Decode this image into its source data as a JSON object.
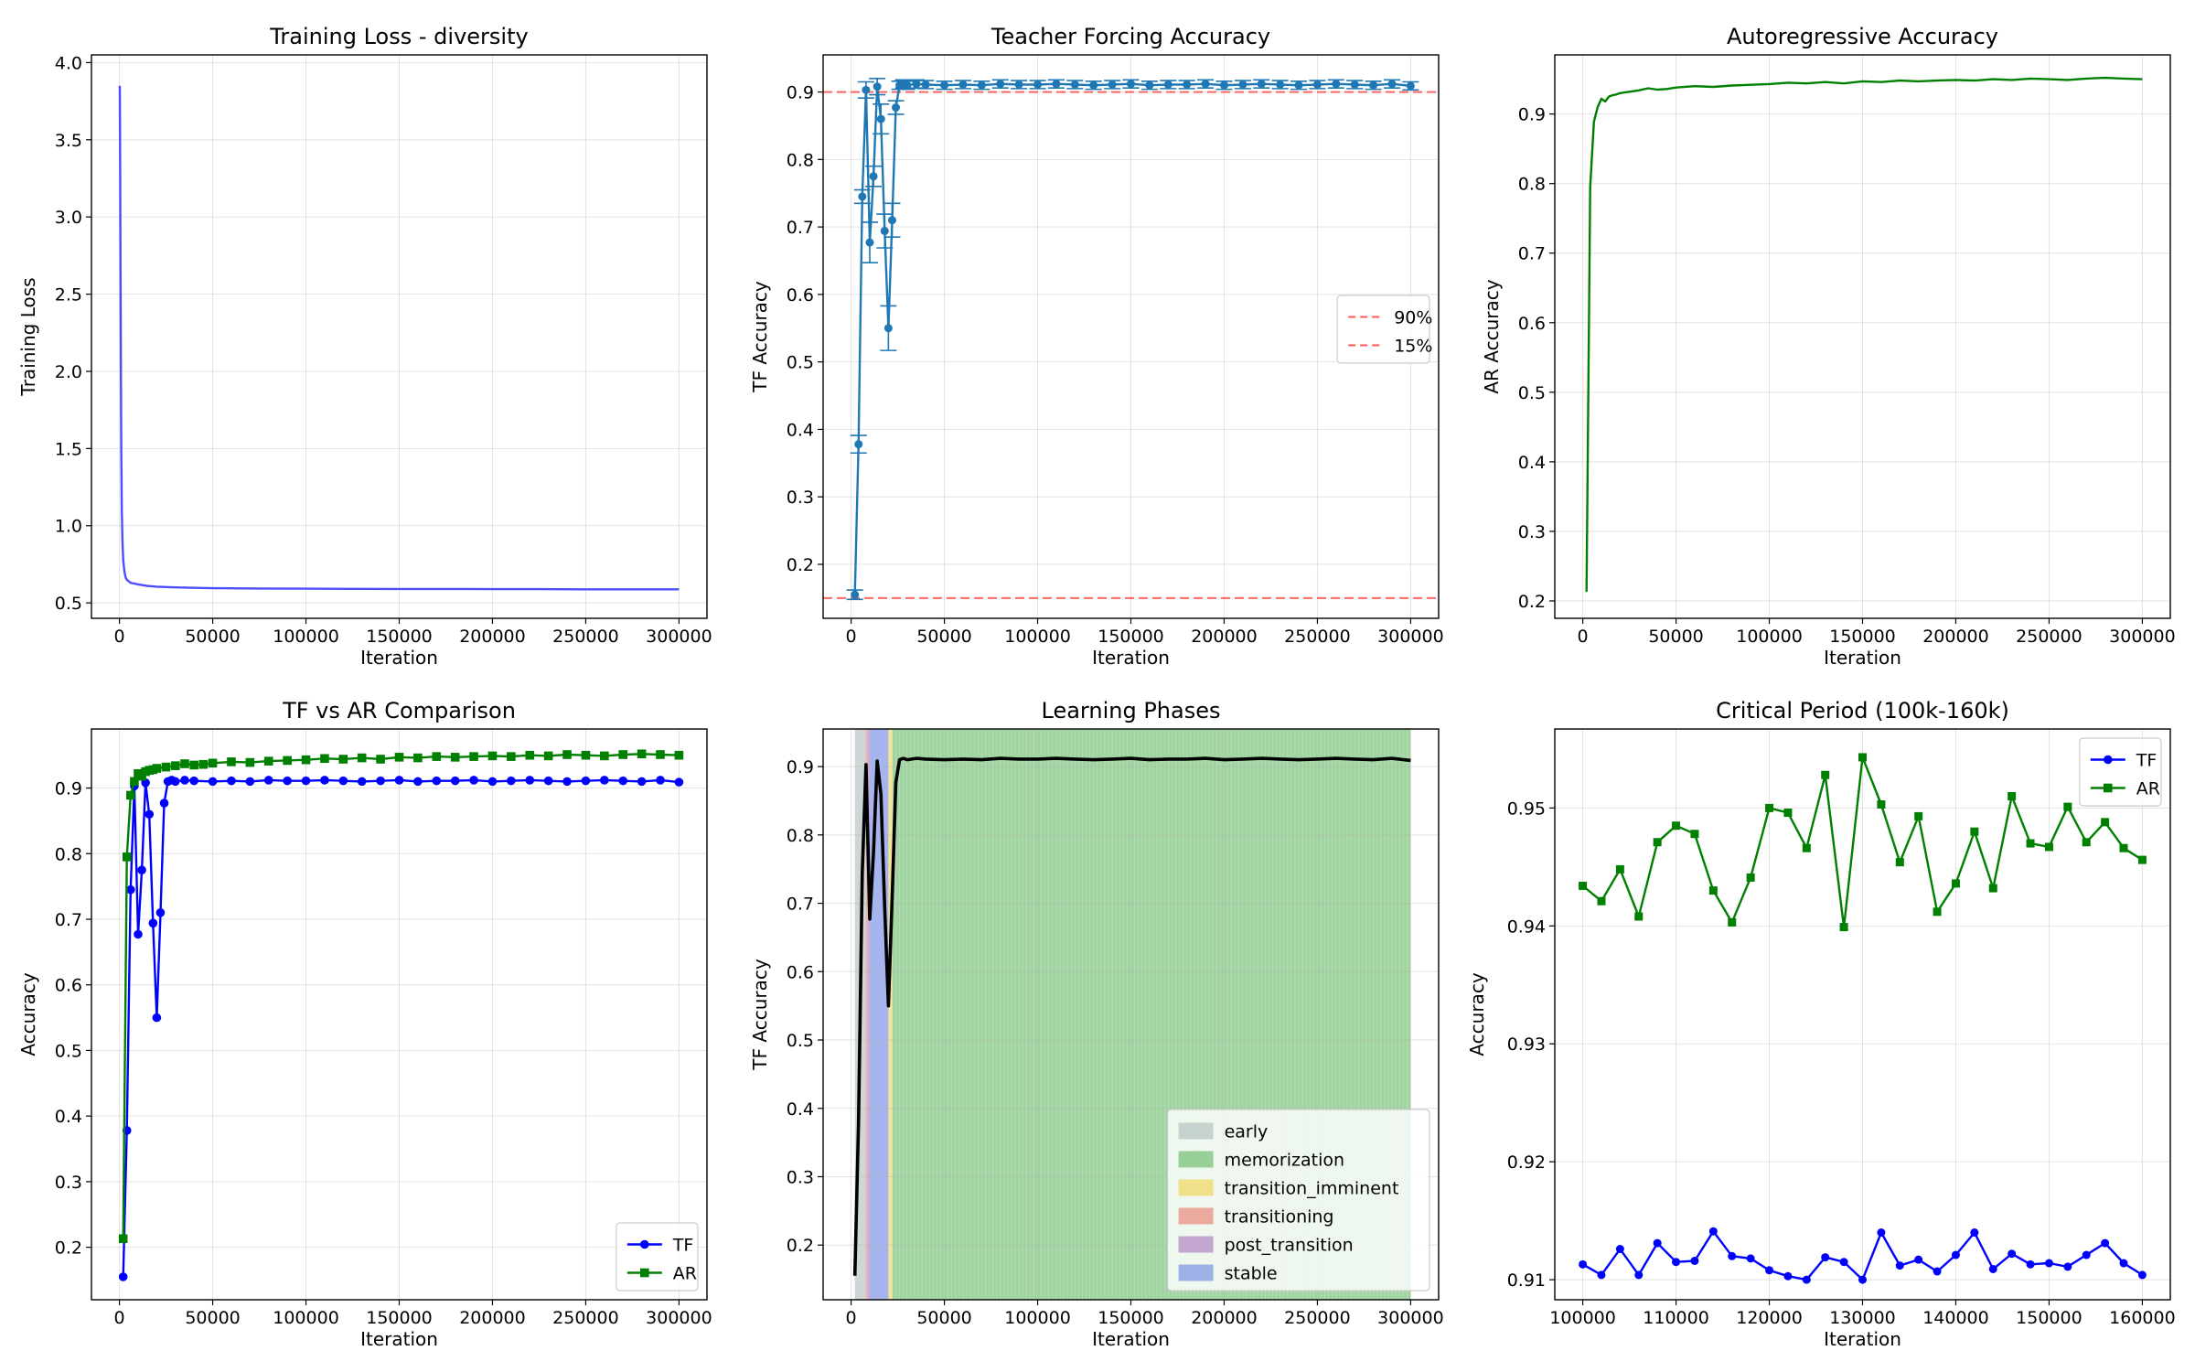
{
  "chart_data": [
    {
      "id": "loss",
      "type": "line",
      "title": "Training Loss - diversity",
      "xlabel": "Iteration",
      "ylabel": "Training Loss",
      "xlim": [
        -15000,
        315000
      ],
      "ylim": [
        0.4,
        4.05
      ],
      "xticks": [
        0,
        50000,
        100000,
        150000,
        200000,
        250000,
        300000
      ],
      "yticks": [
        0.5,
        1.0,
        1.5,
        2.0,
        2.5,
        3.0,
        3.5,
        4.0
      ],
      "ytick_labels": [
        "0.5",
        "1.0",
        "1.5",
        "2.0",
        "2.5",
        "3.0",
        "3.5",
        "4.0"
      ],
      "grid": true,
      "series": [
        {
          "color": "#4d4dff",
          "x": [
            200,
            400,
            600,
            800,
            1000,
            1300,
            1600,
            2000,
            2500,
            3000,
            3500,
            4000,
            5000,
            6000,
            8000,
            10000,
            15000,
            20000,
            30000,
            50000,
            75000,
            100000,
            125000,
            150000,
            175000,
            200000,
            225000,
            250000,
            275000,
            300000
          ],
          "y": [
            3.85,
            3.3,
            2.6,
            2.0,
            1.5,
            1.1,
            0.9,
            0.78,
            0.72,
            0.68,
            0.66,
            0.65,
            0.64,
            0.63,
            0.625,
            0.62,
            0.61,
            0.605,
            0.6,
            0.595,
            0.593,
            0.592,
            0.591,
            0.59,
            0.59,
            0.589,
            0.589,
            0.588,
            0.588,
            0.588
          ]
        }
      ]
    },
    {
      "id": "tf",
      "type": "line",
      "title": "Teacher Forcing Accuracy",
      "xlabel": "Iteration",
      "ylabel": "TF Accuracy",
      "xlim": [
        -15000,
        315000
      ],
      "ylim": [
        0.12,
        0.955
      ],
      "xticks": [
        0,
        50000,
        100000,
        150000,
        200000,
        250000,
        300000
      ],
      "yticks": [
        0.2,
        0.3,
        0.4,
        0.5,
        0.6,
        0.7,
        0.8,
        0.9
      ],
      "ytick_labels": [
        "0.2",
        "0.3",
        "0.4",
        "0.5",
        "0.6",
        "0.7",
        "0.8",
        "0.9"
      ],
      "grid": true,
      "legend_position": "center-right",
      "hlines": [
        {
          "y": 0.9,
          "label": "90%",
          "color": "#ff5555"
        },
        {
          "y": 0.15,
          "label": "15%",
          "color": "#ff5555"
        }
      ],
      "series": [
        {
          "color": "#1f77b4",
          "x": [
            2000,
            4000,
            6000,
            8000,
            10000,
            12000,
            14000,
            16000,
            18000,
            20000,
            22000,
            24000,
            26000,
            28000,
            30000,
            35000,
            40000,
            50000,
            60000,
            70000,
            80000,
            90000,
            100000,
            110000,
            120000,
            130000,
            140000,
            150000,
            160000,
            170000,
            180000,
            190000,
            200000,
            210000,
            220000,
            230000,
            240000,
            250000,
            260000,
            270000,
            280000,
            290000,
            300000
          ],
          "y": [
            0.155,
            0.378,
            0.745,
            0.903,
            0.677,
            0.775,
            0.908,
            0.86,
            0.694,
            0.55,
            0.71,
            0.877,
            0.91,
            0.912,
            0.91,
            0.912,
            0.911,
            0.91,
            0.911,
            0.91,
            0.912,
            0.911,
            0.911,
            0.912,
            0.911,
            0.91,
            0.911,
            0.912,
            0.91,
            0.911,
            0.911,
            0.912,
            0.91,
            0.911,
            0.912,
            0.911,
            0.91,
            0.911,
            0.912,
            0.911,
            0.91,
            0.912,
            0.909
          ],
          "err": [
            0.007,
            0.013,
            0.01,
            0.012,
            0.03,
            0.015,
            0.012,
            0.022,
            0.025,
            0.033,
            0.025,
            0.01,
            0.006,
            0.006,
            0.006,
            0.006,
            0.006,
            0.006,
            0.006,
            0.006,
            0.006,
            0.006,
            0.006,
            0.006,
            0.006,
            0.006,
            0.006,
            0.006,
            0.006,
            0.006,
            0.006,
            0.006,
            0.006,
            0.006,
            0.006,
            0.006,
            0.006,
            0.006,
            0.006,
            0.006,
            0.006,
            0.006,
            0.006
          ]
        }
      ]
    },
    {
      "id": "ar",
      "type": "line",
      "title": "Autoregressive Accuracy",
      "xlabel": "Iteration",
      "ylabel": "AR Accuracy",
      "xlim": [
        -15000,
        315000
      ],
      "ylim": [
        0.175,
        0.985
      ],
      "xticks": [
        0,
        50000,
        100000,
        150000,
        200000,
        250000,
        300000
      ],
      "yticks": [
        0.2,
        0.3,
        0.4,
        0.5,
        0.6,
        0.7,
        0.8,
        0.9
      ],
      "ytick_labels": [
        "0.2",
        "0.3",
        "0.4",
        "0.5",
        "0.6",
        "0.7",
        "0.8",
        "0.9"
      ],
      "grid": true,
      "series": [
        {
          "color": "#008000",
          "x": [
            2000,
            4000,
            6000,
            8000,
            10000,
            12000,
            14000,
            16000,
            18000,
            20000,
            25000,
            30000,
            35000,
            40000,
            45000,
            50000,
            60000,
            70000,
            80000,
            90000,
            100000,
            110000,
            120000,
            130000,
            140000,
            150000,
            160000,
            170000,
            180000,
            190000,
            200000,
            210000,
            220000,
            230000,
            240000,
            250000,
            260000,
            270000,
            280000,
            290000,
            300000
          ],
          "y": [
            0.213,
            0.795,
            0.889,
            0.91,
            0.922,
            0.918,
            0.925,
            0.927,
            0.928,
            0.93,
            0.932,
            0.934,
            0.937,
            0.935,
            0.936,
            0.938,
            0.94,
            0.939,
            0.941,
            0.942,
            0.943,
            0.945,
            0.944,
            0.946,
            0.944,
            0.947,
            0.946,
            0.948,
            0.947,
            0.948,
            0.949,
            0.948,
            0.95,
            0.949,
            0.951,
            0.95,
            0.949,
            0.951,
            0.952,
            0.951,
            0.95
          ]
        }
      ]
    },
    {
      "id": "cmp",
      "type": "line",
      "title": "TF vs AR Comparison",
      "xlabel": "Iteration",
      "ylabel": "Accuracy",
      "xlim": [
        -15000,
        315000
      ],
      "ylim": [
        0.12,
        0.99
      ],
      "xticks": [
        0,
        50000,
        100000,
        150000,
        200000,
        250000,
        300000
      ],
      "yticks": [
        0.2,
        0.3,
        0.4,
        0.5,
        0.6,
        0.7,
        0.8,
        0.9
      ],
      "ytick_labels": [
        "0.2",
        "0.3",
        "0.4",
        "0.5",
        "0.6",
        "0.7",
        "0.8",
        "0.9"
      ],
      "grid": true,
      "legend_position": "lower-right",
      "series": [
        {
          "name": "TF",
          "color": "#0000ff",
          "marker": "circle",
          "x": [
            2000,
            4000,
            6000,
            8000,
            10000,
            12000,
            14000,
            16000,
            18000,
            20000,
            22000,
            24000,
            26000,
            28000,
            30000,
            35000,
            40000,
            50000,
            60000,
            70000,
            80000,
            90000,
            100000,
            110000,
            120000,
            130000,
            140000,
            150000,
            160000,
            170000,
            180000,
            190000,
            200000,
            210000,
            220000,
            230000,
            240000,
            250000,
            260000,
            270000,
            280000,
            290000,
            300000
          ],
          "y": [
            0.155,
            0.378,
            0.745,
            0.903,
            0.677,
            0.775,
            0.908,
            0.86,
            0.694,
            0.55,
            0.71,
            0.877,
            0.91,
            0.912,
            0.91,
            0.912,
            0.911,
            0.91,
            0.911,
            0.91,
            0.912,
            0.911,
            0.911,
            0.912,
            0.911,
            0.91,
            0.911,
            0.912,
            0.91,
            0.911,
            0.911,
            0.912,
            0.91,
            0.911,
            0.912,
            0.911,
            0.91,
            0.911,
            0.912,
            0.911,
            0.91,
            0.912,
            0.909
          ]
        },
        {
          "name": "AR",
          "color": "#008000",
          "marker": "square",
          "x": [
            2000,
            4000,
            6000,
            8000,
            10000,
            12000,
            14000,
            16000,
            18000,
            20000,
            25000,
            30000,
            35000,
            40000,
            45000,
            50000,
            60000,
            70000,
            80000,
            90000,
            100000,
            110000,
            120000,
            130000,
            140000,
            150000,
            160000,
            170000,
            180000,
            190000,
            200000,
            210000,
            220000,
            230000,
            240000,
            250000,
            260000,
            270000,
            280000,
            290000,
            300000
          ],
          "y": [
            0.213,
            0.795,
            0.889,
            0.91,
            0.922,
            0.918,
            0.925,
            0.927,
            0.928,
            0.93,
            0.932,
            0.934,
            0.937,
            0.935,
            0.936,
            0.938,
            0.94,
            0.939,
            0.941,
            0.942,
            0.943,
            0.945,
            0.944,
            0.946,
            0.944,
            0.947,
            0.946,
            0.948,
            0.947,
            0.948,
            0.949,
            0.948,
            0.95,
            0.949,
            0.951,
            0.95,
            0.949,
            0.951,
            0.952,
            0.951,
            0.95
          ]
        }
      ]
    },
    {
      "id": "phases",
      "type": "line",
      "title": "Learning Phases",
      "xlabel": "Iteration",
      "ylabel": "TF Accuracy",
      "xlim": [
        -15000,
        315000
      ],
      "ylim": [
        0.12,
        0.955
      ],
      "xticks": [
        0,
        50000,
        100000,
        150000,
        200000,
        250000,
        300000
      ],
      "yticks": [
        0.2,
        0.3,
        0.4,
        0.5,
        0.6,
        0.7,
        0.8,
        0.9
      ],
      "ytick_labels": [
        "0.2",
        "0.3",
        "0.4",
        "0.5",
        "0.6",
        "0.7",
        "0.8",
        "0.9"
      ],
      "grid": true,
      "legend_position": "lower-right",
      "phases": [
        {
          "name": "early",
          "color": "#95a5a6",
          "from": 2000,
          "to": 8000
        },
        {
          "name": "memorization",
          "color": "#2ca02c",
          "from": 22000,
          "to": 300000
        },
        {
          "name": "transition_imminent",
          "color": "#f1c40f",
          "from": 20000,
          "to": 22000
        },
        {
          "name": "transitioning",
          "color": "#e74c3c",
          "from": 8000,
          "to": 9000
        },
        {
          "name": "post_transition",
          "color": "#8e44ad",
          "from": 9000,
          "to": 10000
        },
        {
          "name": "stable",
          "color": "#3b5bdb",
          "from": 10000,
          "to": 20000
        }
      ],
      "series": [
        {
          "color": "#000000",
          "x": [
            2000,
            4000,
            6000,
            8000,
            10000,
            12000,
            14000,
            16000,
            18000,
            20000,
            22000,
            24000,
            26000,
            28000,
            30000,
            35000,
            40000,
            50000,
            60000,
            70000,
            80000,
            90000,
            100000,
            110000,
            120000,
            130000,
            140000,
            150000,
            160000,
            170000,
            180000,
            190000,
            200000,
            210000,
            220000,
            230000,
            240000,
            250000,
            260000,
            270000,
            280000,
            290000,
            300000
          ],
          "y": [
            0.155,
            0.378,
            0.745,
            0.903,
            0.677,
            0.775,
            0.908,
            0.86,
            0.694,
            0.55,
            0.71,
            0.877,
            0.91,
            0.912,
            0.91,
            0.912,
            0.911,
            0.91,
            0.911,
            0.91,
            0.912,
            0.911,
            0.911,
            0.912,
            0.911,
            0.91,
            0.911,
            0.912,
            0.91,
            0.911,
            0.911,
            0.912,
            0.91,
            0.911,
            0.912,
            0.911,
            0.91,
            0.911,
            0.912,
            0.911,
            0.91,
            0.912,
            0.909
          ]
        }
      ]
    },
    {
      "id": "critical",
      "type": "line",
      "title": "Critical Period (100k-160k)",
      "xlabel": "Iteration",
      "ylabel": "Accuracy",
      "xlim": [
        97000,
        163000
      ],
      "ylim": [
        0.9083,
        0.9567
      ],
      "xticks": [
        100000,
        110000,
        120000,
        130000,
        140000,
        150000,
        160000
      ],
      "yticks": [
        0.91,
        0.92,
        0.93,
        0.94,
        0.95
      ],
      "ytick_labels": [
        "0.91",
        "0.92",
        "0.93",
        "0.94",
        "0.95"
      ],
      "grid": true,
      "legend_position": "upper-right",
      "series": [
        {
          "name": "TF",
          "color": "#0000ff",
          "marker": "circle",
          "x": [
            100000,
            102000,
            104000,
            106000,
            108000,
            110000,
            112000,
            114000,
            116000,
            118000,
            120000,
            122000,
            124000,
            126000,
            128000,
            130000,
            132000,
            134000,
            136000,
            138000,
            140000,
            142000,
            144000,
            146000,
            148000,
            150000,
            152000,
            154000,
            156000,
            158000,
            160000
          ],
          "y": [
            0.9113,
            0.9104,
            0.9126,
            0.9104,
            0.9131,
            0.9115,
            0.9116,
            0.9141,
            0.912,
            0.9118,
            0.9108,
            0.9103,
            0.91,
            0.9119,
            0.9115,
            0.91,
            0.914,
            0.9112,
            0.9117,
            0.9107,
            0.9121,
            0.914,
            0.9109,
            0.9122,
            0.9113,
            0.9114,
            0.9111,
            0.9121,
            0.9131,
            0.9114,
            0.9104
          ]
        },
        {
          "name": "AR",
          "color": "#008000",
          "marker": "square",
          "x": [
            100000,
            102000,
            104000,
            106000,
            108000,
            110000,
            112000,
            114000,
            116000,
            118000,
            120000,
            122000,
            124000,
            126000,
            128000,
            130000,
            132000,
            134000,
            136000,
            138000,
            140000,
            142000,
            144000,
            146000,
            148000,
            150000,
            152000,
            154000,
            156000,
            158000,
            160000
          ],
          "y": [
            0.9434,
            0.9421,
            0.9448,
            0.9408,
            0.9471,
            0.9485,
            0.9478,
            0.943,
            0.9403,
            0.9441,
            0.95,
            0.9496,
            0.9466,
            0.9528,
            0.9399,
            0.9543,
            0.9503,
            0.9454,
            0.9493,
            0.9412,
            0.9436,
            0.948,
            0.9432,
            0.951,
            0.947,
            0.9467,
            0.9501,
            0.9471,
            0.9488,
            0.9466,
            0.9456
          ]
        }
      ]
    }
  ]
}
